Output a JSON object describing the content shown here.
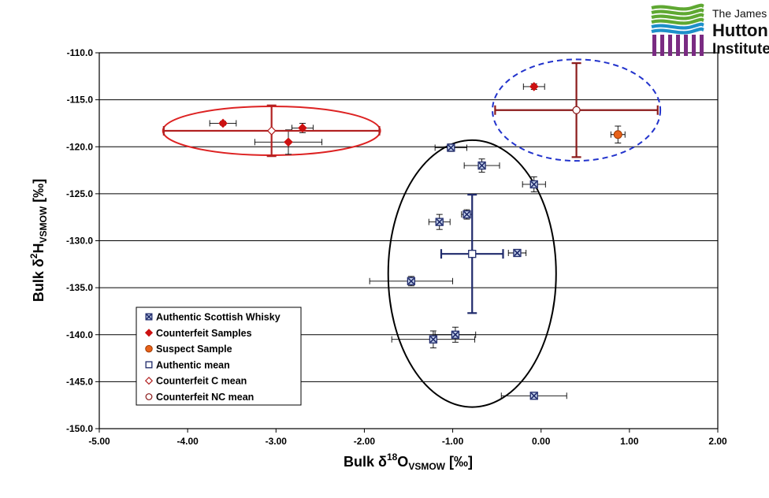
{
  "logo": {
    "line1": "The James",
    "line2": "Hutton",
    "line3": "Institute",
    "colors": {
      "green": "#5fa832",
      "blue": "#1d8fc9",
      "purple": "#7a2b82"
    }
  },
  "chart_data": {
    "type": "scatter",
    "title": "",
    "xlabel": {
      "prefix": "Bulk δ",
      "sup": "18",
      "main": "O",
      "sub": "VSMOW",
      "suffix": " [‰]"
    },
    "ylabel": {
      "prefix": "Bulk δ",
      "sup": "2",
      "main": "H",
      "sub": "VSMOW",
      "suffix": " [‰]"
    },
    "xlim": [
      -5.0,
      2.0
    ],
    "ylim": [
      -150.0,
      -110.0
    ],
    "x_ticks": [
      "-5.00",
      "-4.00",
      "-3.00",
      "-2.00",
      "-1.00",
      "0.00",
      "1.00",
      "2.00"
    ],
    "y_ticks": [
      "-110.0",
      "-115.0",
      "-120.0",
      "-125.0",
      "-130.0",
      "-135.0",
      "-140.0",
      "-145.0",
      "-150.0"
    ],
    "y_tick_values": [
      -110,
      -115,
      -120,
      -125,
      -130,
      -135,
      -140,
      -145,
      -150
    ],
    "x_tick_values": [
      -5,
      -4,
      -3,
      -2,
      -1,
      0,
      1,
      2
    ],
    "grid": "horizontal",
    "legend_position": "bottom-left",
    "series": [
      {
        "name": "Authentic Scottish Whisky",
        "marker": "xsquare",
        "color": "#1f2a6b",
        "points": [
          {
            "x": -1.02,
            "y": -120.1,
            "xerr": 0.18,
            "yerr": 0.4
          },
          {
            "x": -0.67,
            "y": -122.0,
            "xerr": 0.2,
            "yerr": 0.7
          },
          {
            "x": -0.08,
            "y": -124.0,
            "xerr": 0.13,
            "yerr": 0.8
          },
          {
            "x": -0.84,
            "y": -127.2,
            "xerr": 0.06,
            "yerr": 0.5
          },
          {
            "x": -1.15,
            "y": -128.0,
            "xerr": 0.12,
            "yerr": 0.8
          },
          {
            "x": -0.27,
            "y": -131.3,
            "xerr": 0.1,
            "yerr": 0.2
          },
          {
            "x": -1.47,
            "y": -134.3,
            "xerr": 0.47,
            "yerr": 0.5
          },
          {
            "x": -0.97,
            "y": -140.0,
            "xerr": 0.23,
            "yerr": 0.8
          },
          {
            "x": -1.22,
            "y": -140.5,
            "xerr": 0.47,
            "yerr": 0.9
          },
          {
            "x": -0.08,
            "y": -146.5,
            "xerr": 0.37,
            "yerr": 0.2
          }
        ]
      },
      {
        "name": "Counterfeit Samples",
        "marker": "diamond",
        "color": "#cc1111",
        "points": [
          {
            "x": -3.6,
            "y": -117.5,
            "xerr": 0.15,
            "yerr": 0.2
          },
          {
            "x": -2.7,
            "y": -118.0,
            "xerr": 0.12,
            "yerr": 0.5
          },
          {
            "x": -2.86,
            "y": -119.5,
            "xerr": 0.38,
            "yerr": 1.3
          },
          {
            "x": -0.08,
            "y": -113.6,
            "xerr": 0.12,
            "yerr": 0.3
          }
        ]
      },
      {
        "name": "Suspect Sample",
        "marker": "circle-filled",
        "color": "#e8621a",
        "points": [
          {
            "x": 0.87,
            "y": -118.7,
            "xerr": 0.08,
            "yerr": 0.9
          }
        ]
      },
      {
        "name": "Authentic mean",
        "marker": "square-open",
        "color": "#1f2a6b",
        "points": [
          {
            "x": -0.78,
            "y": -131.4,
            "xerr": 0.35,
            "yerr": 6.3
          }
        ]
      },
      {
        "name": "Counterfeit C mean",
        "marker": "diamond-open",
        "color": "#b22222",
        "points": [
          {
            "x": -3.05,
            "y": -118.3,
            "xerr": 1.22,
            "yerr": 2.7
          }
        ]
      },
      {
        "name": "Counterfeit NC mean",
        "marker": "circle-open",
        "color": "#8b1a1a",
        "points": [
          {
            "x": 0.4,
            "y": -116.1,
            "xerr": 0.92,
            "yerr": 5.0
          }
        ]
      }
    ],
    "ellipses": [
      {
        "group": "Counterfeit C",
        "cx": -3.05,
        "cy": -118.3,
        "rx": 1.23,
        "ry": 2.6,
        "color": "#dd2222",
        "dashed": false
      },
      {
        "group": "Counterfeit NC",
        "cx": 0.4,
        "cy": -116.1,
        "rx": 0.95,
        "ry": 5.4,
        "color": "#2233cc",
        "dashed": true
      },
      {
        "group": "Authentic",
        "cx": -0.78,
        "cy": -133.5,
        "rx": 0.95,
        "ry": 14.2,
        "color": "#000000",
        "dashed": false
      }
    ]
  }
}
